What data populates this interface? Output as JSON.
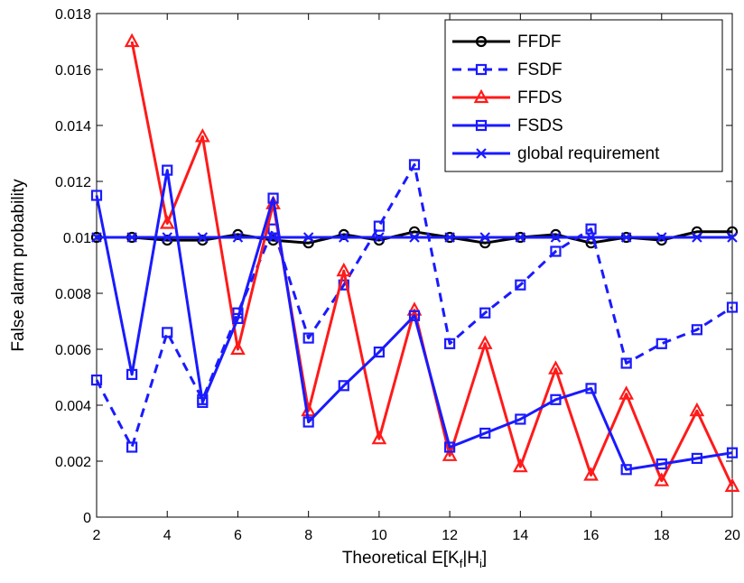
{
  "chart_data": {
    "type": "line",
    "xlabel": [
      "Theoretical E[K",
      "f",
      "|H",
      "i",
      "]"
    ],
    "ylabel": "False alarm probability",
    "x": [
      2,
      3,
      4,
      5,
      6,
      7,
      8,
      9,
      10,
      11,
      12,
      13,
      14,
      15,
      16,
      17,
      18,
      19,
      20
    ],
    "xlim": [
      2,
      20
    ],
    "xticks": [
      2,
      4,
      6,
      8,
      10,
      12,
      14,
      16,
      18,
      20
    ],
    "ylim": [
      0,
      0.018
    ],
    "yticks": [
      0,
      0.002,
      0.004,
      0.006,
      0.008,
      0.01,
      0.012,
      0.014,
      0.016,
      0.018
    ],
    "grid": false,
    "legend": "upper right",
    "series": [
      {
        "name": "FFDF",
        "color": "#000000",
        "marker": "o",
        "dashed": false,
        "values": [
          0.01,
          0.01,
          0.0099,
          0.0099,
          0.0101,
          0.0099,
          0.0098,
          0.0101,
          0.0099,
          0.0102,
          0.01,
          0.0098,
          0.01,
          0.0101,
          0.0098,
          0.01,
          0.0099,
          0.0102,
          0.0102
        ]
      },
      {
        "name": "FSDF",
        "color": "#1a1aff",
        "marker": "s",
        "dashed": true,
        "values": [
          0.0049,
          0.0025,
          0.0066,
          0.0042,
          0.0073,
          0.0103,
          0.0064,
          0.0083,
          0.0104,
          0.0126,
          0.0062,
          0.0073,
          0.0083,
          0.0095,
          0.0103,
          0.0055,
          0.0062,
          0.0067,
          0.0075
        ]
      },
      {
        "name": "FFDS",
        "color": "#ff1a1a",
        "marker": "^",
        "dashed": false,
        "values": [
          null,
          0.017,
          0.0105,
          0.0136,
          0.006,
          0.0112,
          0.0038,
          0.0088,
          0.0028,
          0.0074,
          0.0022,
          0.0062,
          0.0018,
          0.0053,
          0.0015,
          0.0044,
          0.0013,
          0.0038,
          0.0011
        ]
      },
      {
        "name": "FSDS",
        "color": "#1a1aff",
        "marker": "s",
        "dashed": false,
        "values": [
          0.0115,
          0.0051,
          0.0124,
          0.0041,
          0.0071,
          0.0114,
          0.0034,
          0.0047,
          0.0059,
          0.0072,
          0.0025,
          0.003,
          0.0035,
          0.0042,
          0.0046,
          0.0017,
          0.0019,
          0.0021,
          0.0023
        ]
      },
      {
        "name": "global requirement",
        "color": "#1a1aff",
        "marker": "x",
        "dashed": false,
        "values": [
          0.01,
          0.01,
          0.01,
          0.01,
          0.01,
          0.01,
          0.01,
          0.01,
          0.01,
          0.01,
          0.01,
          0.01,
          0.01,
          0.01,
          0.01,
          0.01,
          0.01,
          0.01,
          0.01
        ]
      }
    ]
  }
}
